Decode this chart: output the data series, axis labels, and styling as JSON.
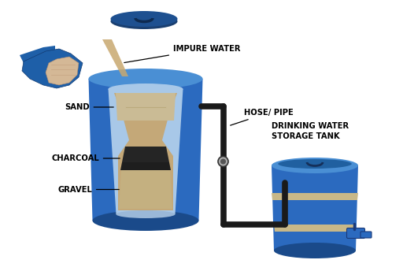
{
  "bg_color": "#ffffff",
  "blue_body": "#2b6abf",
  "blue_light": "#4a8fd4",
  "blue_dark": "#1a4a8a",
  "blue_shadow": "#1a3f7a",
  "pipe_color": "#1a1a1a",
  "sand_color": "#c8b48a",
  "charcoal_color": "#2a2a2a",
  "gravel_color": "#c0aa80",
  "inner_bg": "#a8c8e8",
  "stripe_color": "#c0b090",
  "tap_color": "#2b6abf",
  "label_color": "#000000",
  "labels": {
    "impure_water": "IMPURE WATER",
    "hose_pipe": "HOSE/ PIPE",
    "drinking_tank": "DRINKING WATER\nSTORAGE TANK",
    "sand": "SAND",
    "charcoal": "CHARCOAL",
    "gravel": "GRAVEL"
  },
  "figsize": [
    5.12,
    3.44
  ],
  "dpi": 100
}
